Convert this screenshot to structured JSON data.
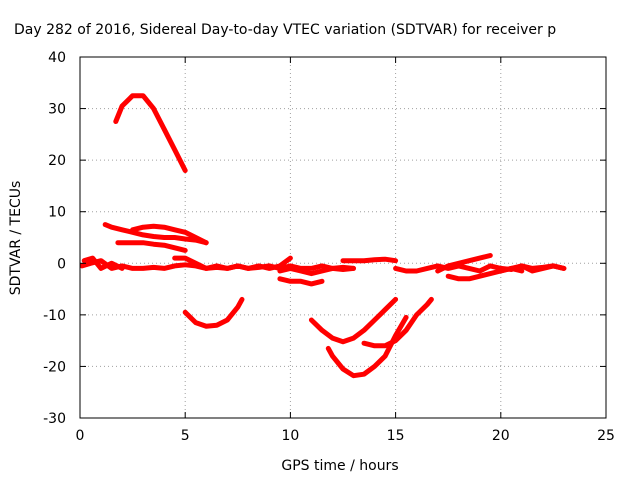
{
  "chart_data": {
    "type": "scatter",
    "title": "Day 282 of 2016, Sidereal Day-to-day VTEC variation (SDTVAR) for receiver p",
    "xlabel": "GPS time / hours",
    "ylabel": "SDTVAR / TECUs",
    "xlim": [
      0,
      25
    ],
    "ylim": [
      -30,
      40
    ],
    "xticks": [
      "0",
      "5",
      "10",
      "15",
      "20",
      "25"
    ],
    "yticks": [
      "-30",
      "-20",
      "-10",
      "0",
      "10",
      "20",
      "30",
      "40"
    ],
    "grid": true,
    "color": "#ff0000",
    "series": [
      {
        "x": [
          0.1,
          0.5,
          1,
          1.5,
          2,
          2.5,
          3,
          3.5,
          4,
          4.5,
          5,
          5.5,
          6,
          6.5,
          7,
          7.5,
          8,
          8.5,
          9,
          9.5,
          10,
          10.5,
          11,
          11.5,
          12,
          12.5,
          13
        ],
        "y": [
          -0.5,
          0,
          0.5,
          -1,
          -0.5,
          -1,
          -1,
          -0.8,
          -1,
          -0.5,
          -0.3,
          -0.5,
          -1,
          -0.8,
          -1,
          -0.5,
          -1,
          -0.8,
          -0.5,
          -1,
          -0.5,
          -1,
          -1,
          -0.5,
          -1,
          -0.8,
          -1
        ]
      },
      {
        "x": [
          0.2,
          0.6,
          1,
          1.5,
          2
        ],
        "y": [
          0.5,
          1,
          -1,
          0,
          -1
        ]
      },
      {
        "x": [
          4.5,
          5,
          5.5,
          6,
          6.5,
          7,
          7.5,
          8,
          8.5,
          9,
          9.5,
          10
        ],
        "y": [
          1,
          1,
          0,
          -1,
          -0.5,
          -1,
          -0.5,
          -1,
          -0.5,
          -1,
          -0.5,
          1
        ]
      },
      {
        "x": [
          1.7,
          2,
          2.5,
          3,
          3.5,
          4,
          4.5,
          5
        ],
        "y": [
          27.5,
          30.5,
          32.5,
          32.5,
          30,
          26,
          22,
          18
        ]
      },
      {
        "x": [
          1.2,
          1.5,
          2,
          2.5,
          3,
          3.5,
          4,
          4.5,
          5,
          5.5,
          6
        ],
        "y": [
          7.5,
          7,
          6.5,
          6,
          5.5,
          5.2,
          5,
          5,
          4.7,
          4.5,
          4
        ]
      },
      {
        "x": [
          2.5,
          3,
          3.5,
          4,
          4.5,
          5,
          5.5,
          6
        ],
        "y": [
          6.5,
          7,
          7.2,
          7,
          6.5,
          6,
          5,
          4
        ]
      },
      {
        "x": [
          1.8,
          2.5,
          3,
          3.5,
          4,
          4.5,
          5
        ],
        "y": [
          4,
          4,
          4,
          3.7,
          3.5,
          3,
          2.5
        ]
      },
      {
        "x": [
          5,
          5.5,
          6,
          6.5,
          7,
          7.5,
          7.7
        ],
        "y": [
          -9.5,
          -11.5,
          -12.2,
          -12,
          -11,
          -8.5,
          -7
        ]
      },
      {
        "x": [
          9.5,
          10,
          10.5,
          11,
          11.5,
          12,
          12.5,
          13
        ],
        "y": [
          -1.5,
          -1,
          -1.5,
          -2,
          -1.5,
          -1,
          -1.2,
          -1
        ]
      },
      {
        "x": [
          9.5,
          10,
          10.5,
          11,
          11.5
        ],
        "y": [
          -3,
          -3.5,
          -3.5,
          -4,
          -3.5
        ]
      },
      {
        "x": [
          11,
          11.5,
          12,
          12.5,
          13,
          13.5,
          14,
          14.5,
          15
        ],
        "y": [
          -11,
          -13,
          -14.5,
          -15.2,
          -14.5,
          -13,
          -11,
          -9,
          -7
        ]
      },
      {
        "x": [
          11.8,
          12,
          12.5,
          13,
          13.5,
          14,
          14.5,
          15,
          15.5
        ],
        "y": [
          -16.5,
          -18,
          -20.5,
          -21.8,
          -21.5,
          -20,
          -18,
          -14,
          -10.5
        ]
      },
      {
        "x": [
          13.5,
          14,
          14.5,
          15,
          15.5,
          16,
          16.5,
          16.7
        ],
        "y": [
          -15.5,
          -16,
          -16,
          -15,
          -13,
          -10,
          -8,
          -7
        ]
      },
      {
        "x": [
          12.5,
          13,
          13.5,
          14,
          14.5,
          15
        ],
        "y": [
          0.5,
          0.5,
          0.5,
          0.7,
          0.8,
          0.5
        ]
      },
      {
        "x": [
          15,
          15.5,
          16,
          16.5,
          17,
          17.5,
          18,
          18.5,
          19,
          19.5,
          20,
          20.5,
          21,
          21.5,
          22,
          22.5,
          23
        ],
        "y": [
          -1,
          -1.5,
          -1.5,
          -1,
          -0.5,
          -1,
          -0.5,
          -1,
          -1.5,
          -0.5,
          -1,
          -1.2,
          -0.5,
          -1,
          -0.8,
          -0.5,
          -1
        ]
      },
      {
        "x": [
          17,
          17.5,
          18,
          18.5,
          19,
          19.5
        ],
        "y": [
          -1.5,
          -0.5,
          0,
          0.5,
          1,
          1.5
        ]
      },
      {
        "x": [
          17.5,
          18,
          18.5,
          19,
          19.5,
          20,
          20.5,
          21
        ],
        "y": [
          -2.5,
          -3,
          -3,
          -2.5,
          -2,
          -1.5,
          -1,
          -1.5
        ]
      },
      {
        "x": [
          20,
          20.5,
          21,
          21.5,
          22,
          22.5,
          23
        ],
        "y": [
          -1.5,
          -1,
          -0.5,
          -1.5,
          -1,
          -0.5,
          -1
        ]
      }
    ]
  }
}
